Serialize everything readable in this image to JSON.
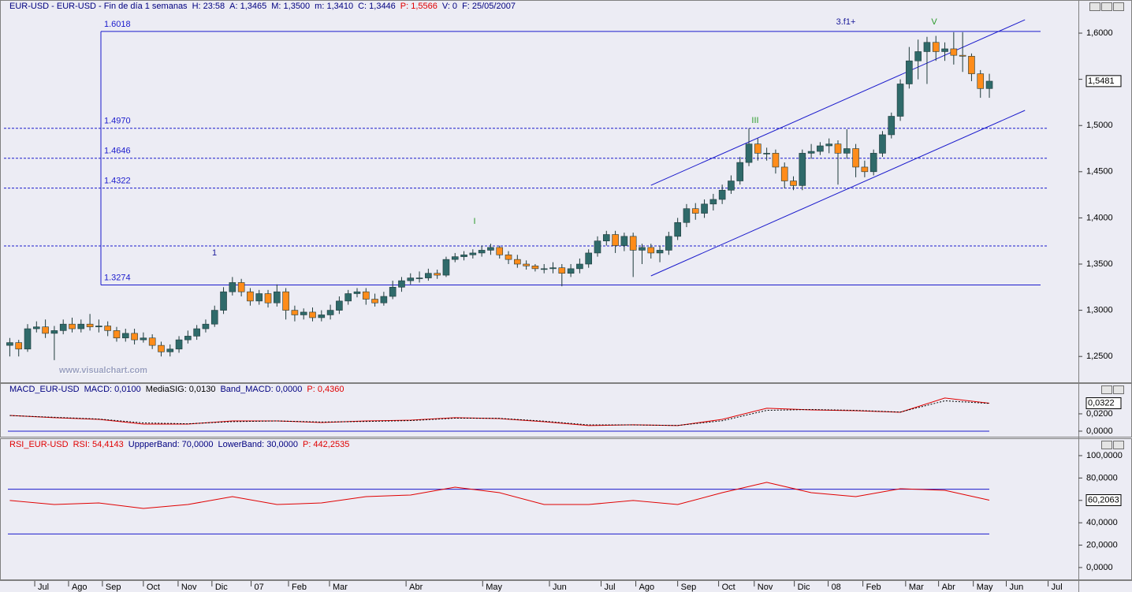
{
  "chart_data": [
    {
      "type": "candlestick",
      "header": [
        {
          "text": "EUR-USD - EUR-USD - Fin de día 1 semanas",
          "color": "#000080"
        },
        {
          "text": "H: 23:58",
          "color": "#000080"
        },
        {
          "text": "A: 1,3465",
          "color": "#000080"
        },
        {
          "text": "M: 1,3500",
          "color": "#000080"
        },
        {
          "text": "m: 1,3410",
          "color": "#000080"
        },
        {
          "text": "C: 1,3446",
          "color": "#000080"
        },
        {
          "text": "P: 1,5566",
          "color": "#e00000"
        },
        {
          "text": "V: 0",
          "color": "#000080"
        },
        {
          "text": "F: 25/05/2007",
          "color": "#000080"
        }
      ],
      "watermark": "www.visualchart.com",
      "up_color": "#2f6a6a",
      "down_color": "#ff8c1a",
      "open": [
        1.262,
        1.265,
        1.258,
        1.28,
        1.282,
        1.275,
        1.278,
        1.285,
        1.28,
        1.285,
        1.282,
        1.283,
        1.278,
        1.27,
        1.275,
        1.268,
        1.27,
        1.262,
        1.255,
        1.258,
        1.268,
        1.272,
        1.28,
        1.285,
        1.3,
        1.32,
        1.33,
        1.32,
        1.31,
        1.318,
        1.308,
        1.32,
        1.3,
        1.295,
        1.298,
        1.292,
        1.295,
        1.3,
        1.31,
        1.318,
        1.32,
        1.312,
        1.308,
        1.315,
        1.325,
        1.332,
        1.335,
        1.335,
        1.34,
        1.338,
        1.355,
        1.358,
        1.36,
        1.362,
        1.365,
        1.368,
        1.36,
        1.355,
        1.35,
        1.348,
        1.345,
        1.345,
        1.346,
        1.34,
        1.345,
        1.35,
        1.362,
        1.375,
        1.382,
        1.37,
        1.38,
        1.365,
        1.368,
        1.362,
        1.365,
        1.38,
        1.395,
        1.41,
        1.405,
        1.415,
        1.42,
        1.43,
        1.44,
        1.46,
        1.48,
        1.47,
        1.47,
        1.455,
        1.44,
        1.435,
        1.47,
        1.472,
        1.478,
        1.48,
        1.47,
        1.475,
        1.455,
        1.45,
        1.47,
        1.49,
        1.51,
        1.545,
        1.57,
        1.58,
        1.59,
        1.58,
        1.583,
        1.576,
        1.575,
        1.556,
        1.54
      ],
      "high": [
        1.27,
        1.268,
        1.285,
        1.288,
        1.29,
        1.283,
        1.29,
        1.292,
        1.29,
        1.296,
        1.29,
        1.288,
        1.282,
        1.28,
        1.28,
        1.276,
        1.274,
        1.266,
        1.263,
        1.272,
        1.278,
        1.284,
        1.29,
        1.305,
        1.325,
        1.336,
        1.334,
        1.324,
        1.322,
        1.322,
        1.328,
        1.324,
        1.305,
        1.302,
        1.303,
        1.3,
        1.306,
        1.315,
        1.322,
        1.324,
        1.324,
        1.318,
        1.32,
        1.332,
        1.336,
        1.34,
        1.342,
        1.345,
        1.344,
        1.358,
        1.362,
        1.364,
        1.366,
        1.37,
        1.372,
        1.37,
        1.364,
        1.36,
        1.354,
        1.35,
        1.35,
        1.352,
        1.35,
        1.35,
        1.356,
        1.366,
        1.38,
        1.386,
        1.386,
        1.384,
        1.384,
        1.372,
        1.372,
        1.37,
        1.385,
        1.4,
        1.415,
        1.416,
        1.42,
        1.426,
        1.436,
        1.446,
        1.466,
        1.497,
        1.486,
        1.476,
        1.474,
        1.46,
        1.445,
        1.474,
        1.48,
        1.482,
        1.486,
        1.484,
        1.496,
        1.48,
        1.462,
        1.474,
        1.494,
        1.514,
        1.55,
        1.585,
        1.593,
        1.596,
        1.597,
        1.59,
        1.601,
        1.601,
        1.578,
        1.56,
        1.556
      ],
      "low": [
        1.25,
        1.25,
        1.255,
        1.276,
        1.27,
        1.246,
        1.274,
        1.276,
        1.276,
        1.278,
        1.276,
        1.272,
        1.266,
        1.266,
        1.263,
        1.265,
        1.258,
        1.25,
        1.25,
        1.254,
        1.264,
        1.268,
        1.276,
        1.282,
        1.296,
        1.316,
        1.315,
        1.305,
        1.306,
        1.303,
        1.304,
        1.29,
        1.288,
        1.29,
        1.288,
        1.288,
        1.29,
        1.296,
        1.306,
        1.314,
        1.306,
        1.304,
        1.305,
        1.312,
        1.32,
        1.328,
        1.33,
        1.332,
        1.334,
        1.336,
        1.352,
        1.354,
        1.356,
        1.358,
        1.36,
        1.356,
        1.35,
        1.346,
        1.344,
        1.342,
        1.34,
        1.34,
        1.326,
        1.336,
        1.34,
        1.346,
        1.358,
        1.37,
        1.362,
        1.364,
        1.336,
        1.35,
        1.356,
        1.352,
        1.36,
        1.376,
        1.39,
        1.398,
        1.4,
        1.408,
        1.415,
        1.426,
        1.436,
        1.456,
        1.462,
        1.462,
        1.448,
        1.432,
        1.43,
        1.43,
        1.464,
        1.468,
        1.47,
        1.436,
        1.464,
        1.444,
        1.444,
        1.446,
        1.466,
        1.486,
        1.505,
        1.54,
        1.55,
        1.545,
        1.57,
        1.57,
        1.566,
        1.558,
        1.548,
        1.53,
        1.53
      ],
      "close": [
        1.265,
        1.258,
        1.28,
        1.282,
        1.275,
        1.278,
        1.285,
        1.28,
        1.285,
        1.282,
        1.283,
        1.278,
        1.27,
        1.275,
        1.268,
        1.27,
        1.262,
        1.255,
        1.258,
        1.268,
        1.272,
        1.28,
        1.285,
        1.3,
        1.32,
        1.33,
        1.32,
        1.31,
        1.318,
        1.308,
        1.32,
        1.3,
        1.295,
        1.298,
        1.292,
        1.295,
        1.3,
        1.31,
        1.318,
        1.32,
        1.312,
        1.308,
        1.315,
        1.325,
        1.332,
        1.335,
        1.335,
        1.34,
        1.338,
        1.355,
        1.358,
        1.36,
        1.362,
        1.365,
        1.368,
        1.36,
        1.355,
        1.35,
        1.348,
        1.345,
        1.345,
        1.346,
        1.34,
        1.345,
        1.35,
        1.362,
        1.375,
        1.382,
        1.37,
        1.38,
        1.365,
        1.368,
        1.362,
        1.365,
        1.38,
        1.395,
        1.41,
        1.405,
        1.415,
        1.42,
        1.43,
        1.44,
        1.46,
        1.48,
        1.47,
        1.47,
        1.455,
        1.44,
        1.435,
        1.47,
        1.472,
        1.478,
        1.48,
        1.47,
        1.475,
        1.455,
        1.45,
        1.47,
        1.49,
        1.51,
        1.545,
        1.57,
        1.58,
        1.59,
        1.58,
        1.583,
        1.576,
        1.575,
        1.556,
        1.54,
        1.548
      ],
      "levels": [
        {
          "value": 1.6018,
          "label": "1.6018",
          "style": "solid"
        },
        {
          "value": 1.497,
          "label": "1.4970",
          "style": "dashed"
        },
        {
          "value": 1.4646,
          "label": "1.4646",
          "style": "dashed"
        },
        {
          "value": 1.4322,
          "label": "1.4322",
          "style": "dashed"
        },
        {
          "value": 1.3696,
          "style": "dashed"
        },
        {
          "value": 1.3274,
          "label": "1.3274",
          "style": "solid"
        }
      ],
      "level_color": "#1a1acc",
      "trendlines": [
        {
          "x": [
            72,
            114
          ],
          "values": [
            1.4353,
            1.6145
          ]
        },
        {
          "x": [
            72,
            114
          ],
          "values": [
            1.3372,
            1.5164
          ]
        }
      ],
      "annotations": [
        {
          "text": "1",
          "color": "#1a1a9a"
        },
        {
          "text": "I",
          "color": "#2a9a2a"
        },
        {
          "text": "III",
          "color": "#2a9a2a"
        },
        {
          "text": "3.f1+",
          "color": "#1a1a9a"
        },
        {
          "text": "V",
          "color": "#2a9a2a"
        }
      ],
      "last": {
        "value": 1.5481,
        "label": "1,5481"
      },
      "xlim": [
        -1.1,
        120
      ],
      "ylim": [
        1.222,
        1.6316
      ],
      "yticks": [
        {
          "value": 1.25,
          "label": "1,2500"
        },
        {
          "value": 1.3,
          "label": "1,3000"
        },
        {
          "value": 1.35,
          "label": "1,3500"
        },
        {
          "value": 1.4,
          "label": "1,4000"
        },
        {
          "value": 1.45,
          "label": "1,4500"
        },
        {
          "value": 1.5,
          "label": "1,5000"
        },
        {
          "value": 1.55,
          "label": "1,5500"
        },
        {
          "value": 1.6,
          "label": "1,6000"
        }
      ]
    },
    {
      "type": "line",
      "header": [
        {
          "text": "MACD_EUR-USD",
          "color": "#000080"
        },
        {
          "text": "MACD: 0,0100",
          "color": "#000080"
        },
        {
          "text": "MediaSIG: 0,0130",
          "color": "#000000"
        },
        {
          "text": "Band_MACD: 0,0000",
          "color": "#000080"
        },
        {
          "text": "P: 0,4360",
          "color": "#e00000"
        }
      ],
      "x": [
        0,
        5,
        10,
        15,
        20,
        25,
        30,
        35,
        40,
        45,
        50,
        55,
        60,
        65,
        70,
        75,
        80,
        85,
        90,
        95,
        100,
        105,
        110
      ],
      "series": [
        {
          "color": "#e00000",
          "dashed": false,
          "values": [
            0.0182,
            0.0155,
            0.0136,
            0.0082,
            0.0082,
            0.0118,
            0.0118,
            0.01,
            0.0118,
            0.0127,
            0.0155,
            0.0145,
            0.0109,
            0.0064,
            0.0073,
            0.0064,
            0.0136,
            0.0264,
            0.0245,
            0.0236,
            0.0218,
            0.0382,
            0.0322
          ]
        },
        {
          "color": "#000000",
          "dashed": true,
          "values": [
            0.018,
            0.016,
            0.014,
            0.0095,
            0.0085,
            0.011,
            0.0118,
            0.0105,
            0.0112,
            0.0122,
            0.015,
            0.0148,
            0.0115,
            0.0072,
            0.0072,
            0.0066,
            0.012,
            0.024,
            0.025,
            0.024,
            0.022,
            0.035,
            0.032
          ]
        }
      ],
      "bands": [
        0
      ],
      "band_color": "#1a1acc",
      "last": {
        "value": 0.0322,
        "label": "0,0322"
      },
      "xlim": [
        -1.1,
        120
      ],
      "ylim": [
        -0.0073,
        0.0545
      ],
      "yticks": [
        {
          "value": 0,
          "label": "0,0000"
        },
        {
          "value": 0.02,
          "label": "0,0200"
        }
      ]
    },
    {
      "type": "line",
      "header": [
        {
          "text": "RSI_EUR-USD",
          "color": "#e00000"
        },
        {
          "text": "RSI: 54,4143",
          "color": "#e00000"
        },
        {
          "text": "UppperBand: 70,0000",
          "color": "#000080"
        },
        {
          "text": "LowerBand: 30,0000",
          "color": "#000080"
        },
        {
          "text": "P: 442,2535",
          "color": "#e00000"
        }
      ],
      "x": [
        0,
        5,
        10,
        15,
        20,
        25,
        30,
        35,
        40,
        45,
        50,
        55,
        60,
        65,
        70,
        75,
        80,
        85,
        90,
        95,
        100,
        105,
        110
      ],
      "series": [
        {
          "color": "#e00000",
          "dashed": false,
          "values": [
            59.9,
            56.3,
            57.7,
            52.8,
            56.3,
            63.4,
            56.3,
            57.7,
            63.4,
            64.8,
            71.8,
            66.9,
            56.3,
            56.3,
            59.9,
            56.3,
            66.9,
            76.1,
            66.9,
            63.4,
            70.4,
            69.0,
            60.2
          ]
        }
      ],
      "bands": [
        70,
        30
      ],
      "band_color": "#1a1acc",
      "last": {
        "value": 60.2063,
        "label": "60,2063"
      },
      "xlim": [
        -1.1,
        120
      ],
      "ylim": [
        -10.6,
        114.8
      ],
      "yticks": [
        {
          "value": 0,
          "label": "0,0000"
        },
        {
          "value": 20,
          "label": "20,0000"
        },
        {
          "value": 40,
          "label": "40,0000"
        },
        {
          "value": 60,
          "label": "60,0000"
        },
        {
          "value": 80,
          "label": "80,0000"
        },
        {
          "value": 100,
          "label": "100,0000"
        }
      ],
      "xticks": [
        {
          "value": 2.8,
          "label": "Jul"
        },
        {
          "value": 6.6,
          "label": "Ago"
        },
        {
          "value": 10.4,
          "label": "Sep"
        },
        {
          "value": 15.0,
          "label": "Oct"
        },
        {
          "value": 18.9,
          "label": "Nov"
        },
        {
          "value": 22.7,
          "label": "Dic"
        },
        {
          "value": 27.1,
          "label": "07"
        },
        {
          "value": 31.3,
          "label": "Feb"
        },
        {
          "value": 35.9,
          "label": "Mar"
        },
        {
          "value": 44.5,
          "label": "Abr"
        },
        {
          "value": 53.1,
          "label": "May"
        },
        {
          "value": 60.6,
          "label": "Jun"
        },
        {
          "value": 66.4,
          "label": "Jul"
        },
        {
          "value": 70.3,
          "label": "Ago"
        },
        {
          "value": 75.0,
          "label": "Sep"
        },
        {
          "value": 79.6,
          "label": "Oct"
        },
        {
          "value": 83.6,
          "label": "Nov"
        },
        {
          "value": 88.1,
          "label": "Dic"
        },
        {
          "value": 91.9,
          "label": "08"
        },
        {
          "value": 95.8,
          "label": "Feb"
        },
        {
          "value": 100.6,
          "label": "Mar"
        },
        {
          "value": 104.3,
          "label": "Abr"
        },
        {
          "value": 108.2,
          "label": "May"
        },
        {
          "value": 111.9,
          "label": "Jun"
        },
        {
          "value": 116.6,
          "label": "Jul"
        }
      ]
    }
  ]
}
